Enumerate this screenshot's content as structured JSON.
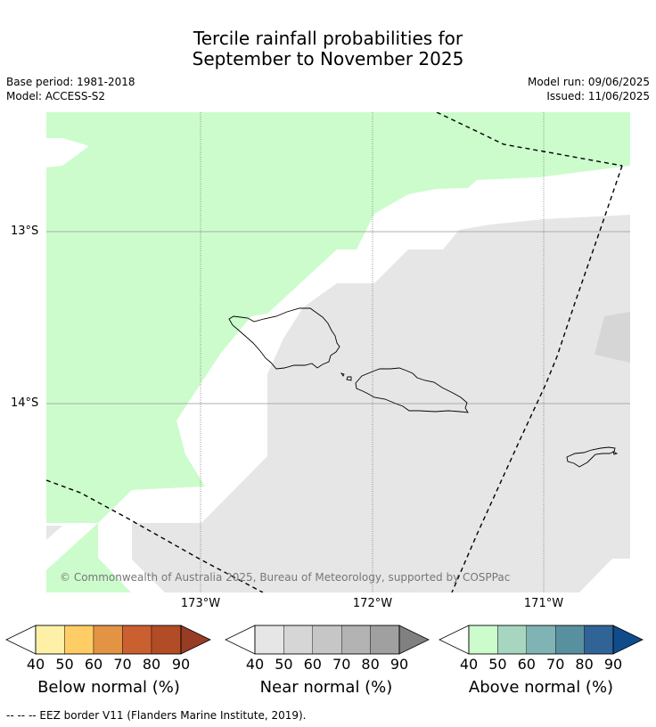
{
  "title_line1": "Tercile rainfall probabilities for",
  "title_line2": "September to November 2025",
  "base_period": "Base period: 1981-2018",
  "model": "Model: ACCESS-S2",
  "model_run": "Model run: 09/06/2025",
  "issued": "Issued: 11/06/2025",
  "map": {
    "lat_labels": [
      "13°S",
      "14°S"
    ],
    "lon_labels": [
      "173°W",
      "172°W",
      "171°W"
    ],
    "copyright": "© Commonwealth of Australia 2025, Bureau of Meteorology, supported by COSPPac",
    "colors": {
      "above_40_50": "#ccfccc",
      "near_40_50": "#e6e6e6",
      "near_50_60": "#d6d6d6",
      "no_signal": "#ffffff"
    }
  },
  "colorbars": [
    {
      "title": "Below normal (%)",
      "ticks": [
        "40",
        "50",
        "60",
        "70",
        "80",
        "90"
      ],
      "colors": [
        "#fff0a8",
        "#fecd66",
        "#e29444",
        "#ca6030",
        "#b24c26",
        "#973d25"
      ]
    },
    {
      "title": "Near normal (%)",
      "ticks": [
        "40",
        "50",
        "60",
        "70",
        "80",
        "90"
      ],
      "colors": [
        "#e6e6e6",
        "#d6d6d6",
        "#c6c6c6",
        "#b3b3b3",
        "#a0a0a0",
        "#808080"
      ]
    },
    {
      "title": "Above normal (%)",
      "ticks": [
        "40",
        "50",
        "60",
        "70",
        "80",
        "90"
      ],
      "colors": [
        "#ccfccc",
        "#a6d6c0",
        "#80b3b3",
        "#5990a0",
        "#306496",
        "#104c8c"
      ]
    }
  ],
  "footnote": "--  --  -- EEZ border V11 (Flanders Marine Institute, 2019)."
}
